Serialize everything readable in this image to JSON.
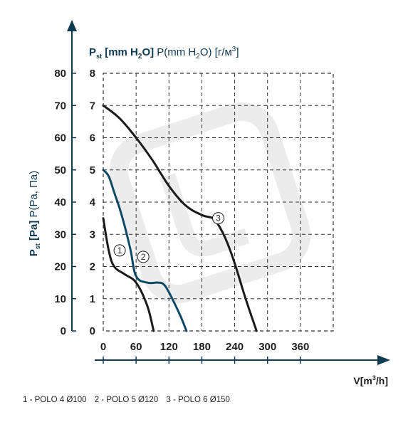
{
  "chart_data": {
    "type": "line",
    "y_left_label": {
      "main": "P",
      "sub": "st",
      "bold_unit": " [Pa]",
      "rest": " P(Pa, Па)"
    },
    "y_right_label": {
      "main": "P",
      "sub": "st",
      "bold_unit": " [mm H",
      "bold_sub": "2",
      "bold_end": "O]",
      "rest1": " P(mm H",
      "rest_sub": "2",
      "rest2": "O) [г/м",
      "rest_sup": "3",
      "rest3": "]"
    },
    "xlabel": {
      "main": "V[m",
      "sup": "3",
      "end": "/h]"
    },
    "x_ticks": [
      "0",
      "60",
      "120",
      "180",
      "240",
      "300",
      "360"
    ],
    "y_left_ticks": [
      "0",
      "10",
      "20",
      "30",
      "40",
      "50",
      "60",
      "70",
      "80"
    ],
    "y_mm_ticks": [
      "0",
      "1",
      "2",
      "3",
      "4",
      "5",
      "6",
      "7",
      "8"
    ],
    "xlim": [
      0,
      420
    ],
    "ylim": [
      0,
      80
    ],
    "grid": true,
    "series": [
      {
        "marker": "1",
        "color": "#1a1a1a",
        "x": [
          0,
          10,
          20,
          40,
          60,
          80,
          92
        ],
        "y": [
          35,
          25,
          20,
          17.5,
          15,
          8,
          0
        ]
      },
      {
        "marker": "2",
        "color": "#0e4a66",
        "x": [
          0,
          10,
          20,
          30,
          40,
          50,
          60,
          80,
          100,
          110,
          120,
          140,
          152
        ],
        "y": [
          50,
          48,
          43,
          38,
          32,
          25,
          17,
          15,
          15,
          14.5,
          12,
          5,
          0
        ]
      },
      {
        "marker": "3",
        "color": "#1a1a1a",
        "x": [
          0,
          30,
          60,
          90,
          120,
          150,
          180,
          200,
          210,
          225,
          240,
          260,
          280
        ],
        "y": [
          70,
          66,
          60,
          53,
          45,
          39,
          36,
          35,
          33,
          28,
          21,
          10,
          0
        ]
      }
    ],
    "marker_positions": [
      {
        "label": "1",
        "x": 30,
        "y": 25
      },
      {
        "label": "2",
        "x": 73,
        "y": 23
      },
      {
        "label": "3",
        "x": 210,
        "y": 35
      }
    ]
  },
  "legend": [
    "1 - POLO 4 Ø100",
    "2 - POLO 5 Ø120",
    "3 - POLO 6 Ø150"
  ]
}
